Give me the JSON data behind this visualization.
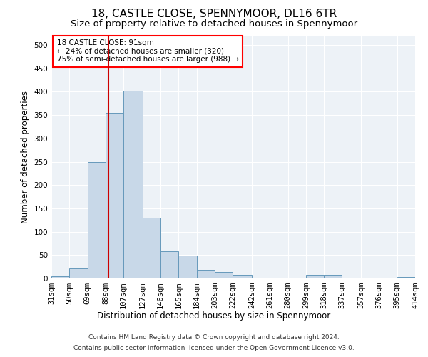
{
  "title": "18, CASTLE CLOSE, SPENNYMOOR, DL16 6TR",
  "subtitle": "Size of property relative to detached houses in Spennymoor",
  "xlabel": "Distribution of detached houses by size in Spennymoor",
  "ylabel": "Number of detached properties",
  "footer_line1": "Contains HM Land Registry data © Crown copyright and database right 2024.",
  "footer_line2": "Contains public sector information licensed under the Open Government Licence v3.0.",
  "property_size": 91,
  "property_label": "18 CASTLE CLOSE: 91sqm",
  "annotation_line2": "← 24% of detached houses are smaller (320)",
  "annotation_line3": "75% of semi-detached houses are larger (988) →",
  "bar_color": "#c8d8e8",
  "bar_edge_color": "#6699bb",
  "line_color": "#cc0000",
  "bin_edges": [
    31,
    50,
    69,
    88,
    107,
    127,
    146,
    165,
    184,
    203,
    222,
    242,
    261,
    280,
    299,
    318,
    337,
    357,
    376,
    395,
    414
  ],
  "bin_labels": [
    "31sqm",
    "50sqm",
    "69sqm",
    "88sqm",
    "107sqm",
    "127sqm",
    "146sqm",
    "165sqm",
    "184sqm",
    "203sqm",
    "222sqm",
    "242sqm",
    "261sqm",
    "280sqm",
    "299sqm",
    "318sqm",
    "337sqm",
    "357sqm",
    "376sqm",
    "395sqm",
    "414sqm"
  ],
  "bar_heights": [
    5,
    22,
    250,
    355,
    403,
    130,
    58,
    49,
    18,
    14,
    7,
    1,
    2,
    1,
    7,
    7,
    1,
    0,
    1,
    3
  ],
  "ylim": [
    0,
    520
  ],
  "yticks": [
    0,
    50,
    100,
    150,
    200,
    250,
    300,
    350,
    400,
    450,
    500
  ],
  "background_color": "#edf2f7",
  "grid_color": "#ffffff",
  "title_fontsize": 11,
  "subtitle_fontsize": 9.5,
  "axis_label_fontsize": 8.5,
  "tick_fontsize": 7.5,
  "annotation_fontsize": 7.5,
  "footer_fontsize": 6.5
}
